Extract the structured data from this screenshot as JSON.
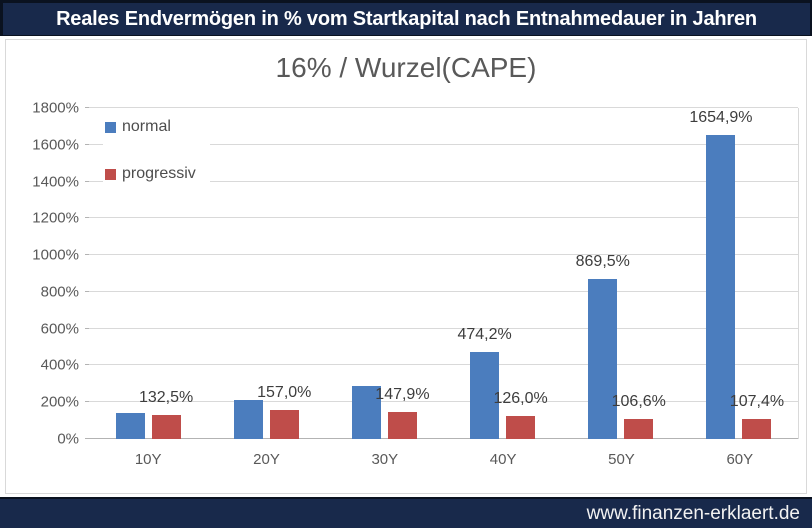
{
  "top_banner": {
    "title": "Reales Endvermögen in % vom Startkapital nach Entnahmedauer in Jahren",
    "bg_color": "#18294b",
    "text_color": "#ffffff"
  },
  "bottom_banner": {
    "url": "www.finanzen-erklaert.de",
    "bg_color": "#18294b"
  },
  "chart_data": {
    "type": "bar",
    "title": "16% / Wurzel(CAPE)",
    "categories": [
      "10Y",
      "20Y",
      "30Y",
      "40Y",
      "50Y",
      "60Y"
    ],
    "series": [
      {
        "name": "normal",
        "color": "#4b7dbe",
        "values": [
          140,
          210,
          290,
          474.2,
          869.5,
          1654.9
        ],
        "labels": [
          "",
          "",
          "",
          "474,2%",
          "869,5%",
          "1654,9%"
        ]
      },
      {
        "name": "progressiv",
        "color": "#bf4d4a",
        "values": [
          132.5,
          157.0,
          147.9,
          126.0,
          106.6,
          107.4
        ],
        "labels": [
          "132,5%",
          "157,0%",
          "147,9%",
          "126,0%",
          "106,6%",
          "107,4%"
        ]
      }
    ],
    "ylim": [
      0,
      1800
    ],
    "ytick_step": 200,
    "yticks": [
      "0%",
      "200%",
      "400%",
      "600%",
      "800%",
      "1000%",
      "1200%",
      "1400%",
      "1600%",
      "1800%"
    ],
    "xlabel": "",
    "ylabel": "",
    "grid": "horizontal",
    "legend_position": "top-left-inside",
    "colors": {
      "gridline": "#d9d9d9",
      "axis_line": "#b3b3b3",
      "tick_text": "#595959",
      "data_label_text": "#3d3d3d",
      "title_text": "#595959"
    }
  }
}
